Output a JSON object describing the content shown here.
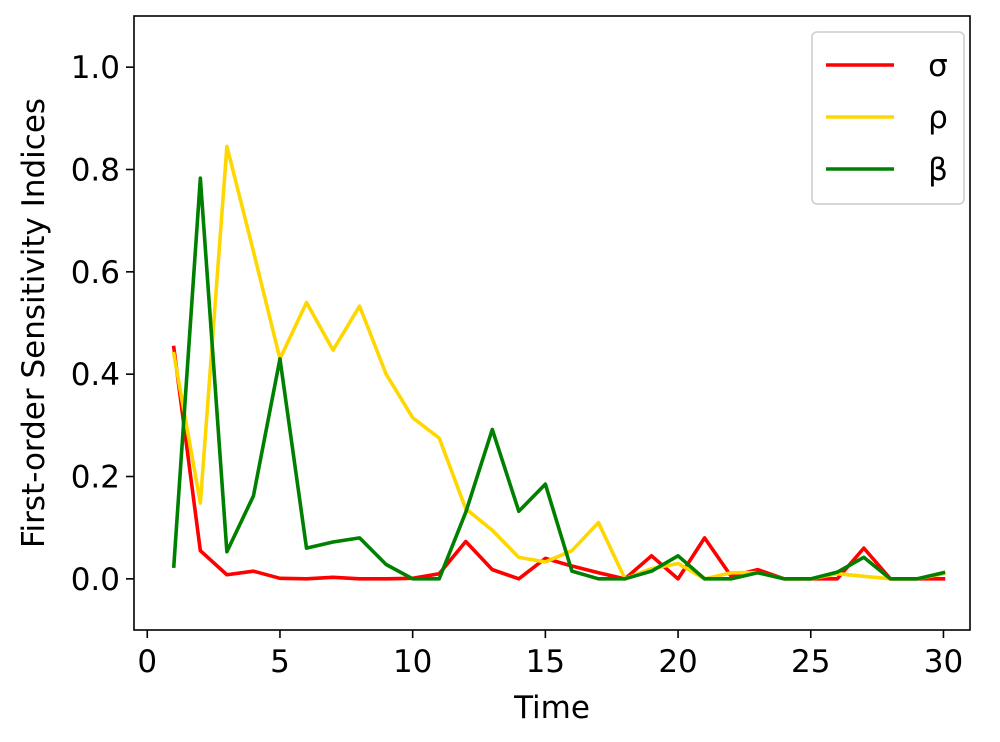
{
  "chart_data": {
    "type": "line",
    "xlabel": "Time",
    "ylabel": "First-order Sensitivity Indices",
    "xlim": [
      -0.5,
      31.0
    ],
    "ylim": [
      -0.1,
      1.1
    ],
    "xticks": [
      0,
      5,
      10,
      15,
      20,
      25,
      30
    ],
    "yticks": [
      0.0,
      0.2,
      0.4,
      0.6,
      0.8,
      1.0
    ],
    "xtick_labels": [
      "0",
      "5",
      "10",
      "15",
      "20",
      "25",
      "30"
    ],
    "ytick_labels": [
      "0.0",
      "0.2",
      "0.4",
      "0.6",
      "0.8",
      "1.0"
    ],
    "grid": false,
    "legend": "top-right",
    "x": [
      1,
      2,
      3,
      4,
      5,
      6,
      7,
      8,
      9,
      10,
      11,
      12,
      13,
      14,
      15,
      16,
      17,
      18,
      19,
      20,
      21,
      22,
      23,
      24,
      25,
      26,
      27,
      28,
      29,
      30
    ],
    "series": [
      {
        "name": "σ",
        "color": "#ff0000",
        "values": [
          0.452,
          0.055,
          0.008,
          0.015,
          0.001,
          0.0,
          0.003,
          0.0,
          0.0,
          0.001,
          0.01,
          0.073,
          0.018,
          0.0,
          0.04,
          0.025,
          0.012,
          0.0,
          0.045,
          0.0,
          0.08,
          0.005,
          0.018,
          0.0,
          0.0,
          0.0,
          0.06,
          0.0,
          0.0,
          0.0
        ]
      },
      {
        "name": "ρ",
        "color": "#ffd700",
        "values": [
          0.44,
          0.148,
          0.845,
          0.64,
          0.43,
          0.54,
          0.447,
          0.533,
          0.4,
          0.315,
          0.275,
          0.137,
          0.095,
          0.042,
          0.033,
          0.055,
          0.11,
          0.0,
          0.02,
          0.03,
          0.0,
          0.012,
          0.012,
          0.0,
          0.0,
          0.01,
          0.005,
          0.0,
          0.0,
          0.01
        ]
      },
      {
        "name": "β",
        "color": "#008000",
        "values": [
          0.025,
          0.783,
          0.053,
          0.162,
          0.43,
          0.06,
          0.072,
          0.08,
          0.028,
          0.0,
          0.0,
          0.13,
          0.292,
          0.132,
          0.185,
          0.015,
          0.0,
          0.0,
          0.015,
          0.045,
          0.0,
          0.0,
          0.012,
          0.0,
          0.0,
          0.013,
          0.042,
          0.0,
          0.0,
          0.012
        ]
      }
    ]
  }
}
